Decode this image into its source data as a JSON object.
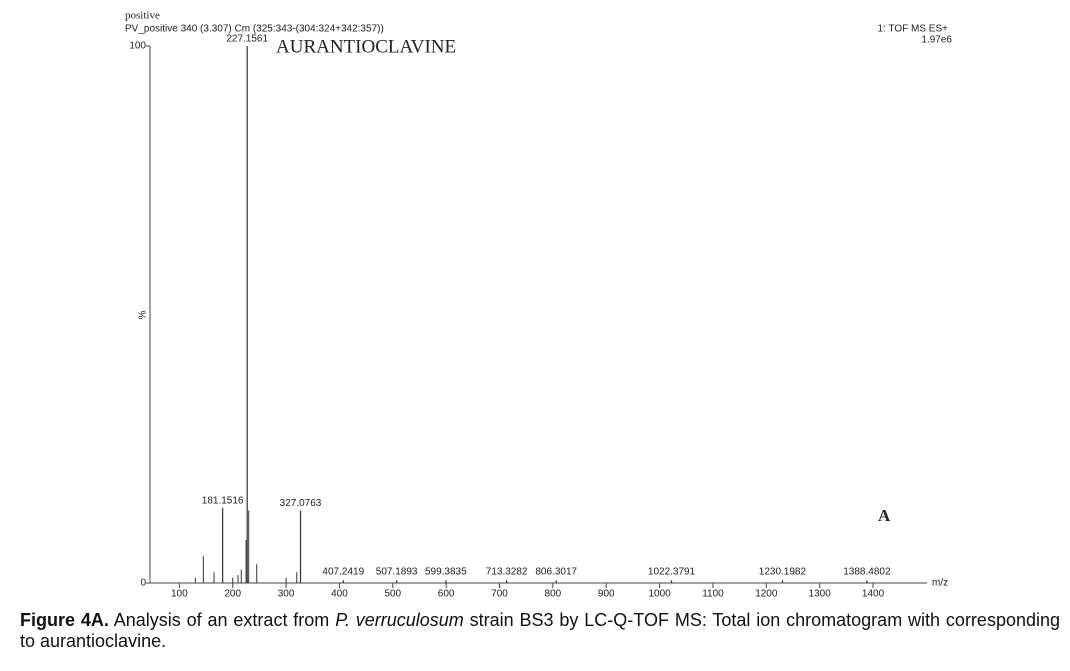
{
  "chart_data": {
    "type": "spectrum",
    "header_left": "positive",
    "header_info": "PV_positive 340 (3.307) Cm (325:343-(304:324+342:357))",
    "header_right": "1: TOF MS ES+",
    "max_intensity": "1.97e6",
    "title": "AURANTIOCLAVINE",
    "panel": "A",
    "ylabel": "%",
    "xlabel": "m/z",
    "x": [
      181.1516,
      227.1561,
      327.0763,
      407.2419,
      507.1893,
      599.3835,
      713.3282,
      806.3017,
      1022.3791,
      1230.1982,
      1388.4802
    ],
    "values": [
      14,
      100,
      13.5,
      0.5,
      0.5,
      0.5,
      0.5,
      0.5,
      0.5,
      0.5,
      0.5
    ],
    "minor_peaks": {
      "x": [
        130,
        145,
        165,
        200,
        210,
        216,
        225,
        230,
        245,
        300,
        320
      ],
      "values": [
        1,
        5,
        2,
        1,
        1.5,
        2.5,
        8,
        13.5,
        3.5,
        1,
        2
      ]
    },
    "xlim": [
      45,
      1500
    ],
    "xticks": [
      100,
      200,
      300,
      400,
      500,
      600,
      700,
      800,
      900,
      1000,
      1100,
      1200,
      1300,
      1400
    ],
    "ylim": [
      0,
      100
    ],
    "yticks": [
      0,
      100
    ],
    "color": "#333333"
  },
  "caption": {
    "label": "Figure 4A.",
    "text1": " Analysis of an extract from ",
    "species": "P. verruculosum",
    "text2": " strain BS3 by LC-Q-TOF MS: Total ion chromatogram with corresponding to aurantioclavine."
  }
}
